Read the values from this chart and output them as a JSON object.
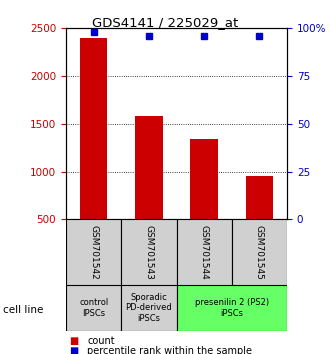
{
  "title": "GDS4141 / 225029_at",
  "samples": [
    "GSM701542",
    "GSM701543",
    "GSM701544",
    "GSM701545"
  ],
  "counts": [
    2400,
    1580,
    1340,
    950
  ],
  "percentiles": [
    98,
    96,
    96,
    96
  ],
  "ylim_left": [
    500,
    2500
  ],
  "ylim_right": [
    0,
    100
  ],
  "yticks_left": [
    500,
    1000,
    1500,
    2000,
    2500
  ],
  "yticks_right": [
    0,
    25,
    50,
    75,
    100
  ],
  "ytick_labels_right": [
    "0",
    "25",
    "50",
    "75",
    "100%"
  ],
  "bar_color": "#cc0000",
  "dot_color": "#0000cc",
  "bar_width": 0.5,
  "cell_line_groups": [
    {
      "label": "control\nIPSCs",
      "span": [
        0,
        1
      ],
      "color": "#d0d0d0"
    },
    {
      "label": "Sporadic\nPD-derived\niPSCs",
      "span": [
        1,
        2
      ],
      "color": "#d0d0d0"
    },
    {
      "label": "presenilin 2 (PS2)\niPSCs",
      "span": [
        2,
        4
      ],
      "color": "#66ff66"
    }
  ],
  "xlabel_area_label": "cell line",
  "legend_count_label": "count",
  "legend_pct_label": "percentile rank within the sample",
  "tick_label_color_left": "#cc0000",
  "tick_label_color_right": "#0000cc"
}
